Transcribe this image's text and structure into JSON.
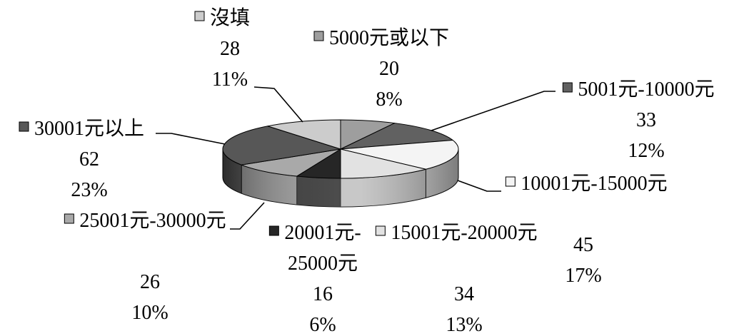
{
  "chart_data": {
    "type": "pie",
    "three_d": true,
    "categories": [
      "5000元或以下",
      "5001元-10000元",
      "10001元-15000元",
      "15001元-20000元",
      "20001元-25000元",
      "25001元-30000元",
      "30001元以上",
      "沒填"
    ],
    "values": [
      20,
      33,
      45,
      34,
      16,
      26,
      62,
      28
    ],
    "percent_labels": [
      "8%",
      "12%",
      "17%",
      "13%",
      "6%",
      "10%",
      "23%",
      "11%"
    ],
    "colors": [
      "#9e9e9e",
      "#616161",
      "#f4f4f4",
      "#e2e2e2",
      "#262626",
      "#a9a9a9",
      "#575757",
      "#cccccc"
    ]
  }
}
